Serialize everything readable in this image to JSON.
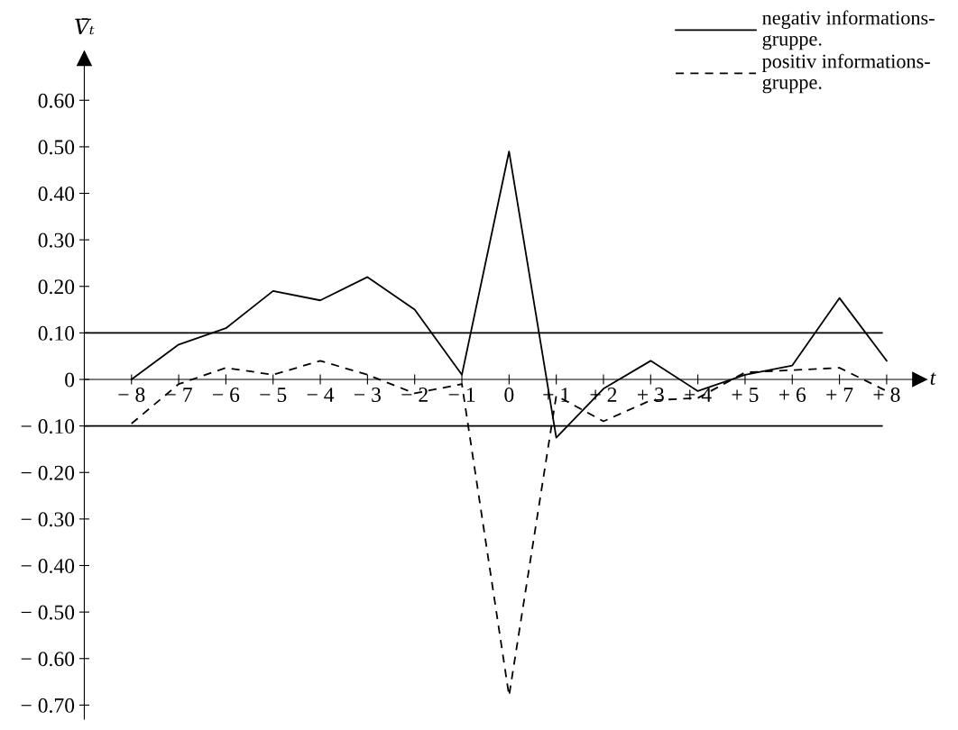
{
  "chart_data": {
    "type": "line",
    "xlabel": "t",
    "ylabel": "V̄ₜ",
    "x": [
      -8,
      -7,
      -6,
      -5,
      -4,
      -3,
      -2,
      -1,
      0,
      1,
      2,
      3,
      4,
      5,
      6,
      7,
      8
    ],
    "series": [
      {
        "name": "negativ informations-\ngruppe.",
        "color": "#000000",
        "line_style": "solid",
        "values": [
          0.0,
          0.075,
          0.11,
          0.19,
          0.17,
          0.22,
          0.15,
          0.01,
          0.49,
          -0.125,
          -0.02,
          0.04,
          -0.025,
          0.01,
          0.03,
          0.175,
          0.04
        ]
      },
      {
        "name": "positiv informations-\ngruppe.",
        "color": "#000000",
        "line_style": "dashed",
        "values": [
          -0.095,
          -0.01,
          0.025,
          0.01,
          0.04,
          0.01,
          -0.03,
          -0.01,
          -0.68,
          -0.035,
          -0.09,
          -0.045,
          -0.04,
          0.015,
          0.02,
          0.025,
          -0.025
        ]
      }
    ],
    "ref_lines": [
      {
        "axis": "y",
        "value": 0.1,
        "color": "#000000",
        "line_style": "solid"
      },
      {
        "axis": "y",
        "value": -0.1,
        "color": "#000000",
        "line_style": "solid"
      }
    ],
    "xlim": [
      -9.0,
      8.7
    ],
    "ylim": [
      -0.73,
      0.69
    ],
    "xticks": [
      {
        "value": -8,
        "label": "− 8"
      },
      {
        "value": -7,
        "label": "− 7"
      },
      {
        "value": -6,
        "label": "− 6"
      },
      {
        "value": -5,
        "label": "− 5"
      },
      {
        "value": -4,
        "label": "− 4"
      },
      {
        "value": -3,
        "label": "− 3"
      },
      {
        "value": -2,
        "label": "− 2"
      },
      {
        "value": -1,
        "label": "− 1"
      },
      {
        "value": 0,
        "label": "0"
      },
      {
        "value": 1,
        "label": "+ 1"
      },
      {
        "value": 2,
        "label": "+ 2"
      },
      {
        "value": 3,
        "label": "+ 3"
      },
      {
        "value": 4,
        "label": "+ 4"
      },
      {
        "value": 5,
        "label": "+ 5"
      },
      {
        "value": 6,
        "label": "+ 6"
      },
      {
        "value": 7,
        "label": "+ 7"
      },
      {
        "value": 8,
        "label": "+ 8"
      }
    ],
    "yticks": [
      {
        "value": 0.6,
        "label": "0.60"
      },
      {
        "value": 0.5,
        "label": "0.50"
      },
      {
        "value": 0.4,
        "label": "0.40"
      },
      {
        "value": 0.3,
        "label": "0.30"
      },
      {
        "value": 0.2,
        "label": "0.20"
      },
      {
        "value": 0.1,
        "label": "0.10"
      },
      {
        "value": 0,
        "label": "0"
      },
      {
        "value": -0.1,
        "label": "− 0.10"
      },
      {
        "value": -0.2,
        "label": "− 0.20"
      },
      {
        "value": -0.3,
        "label": "− 0.30"
      },
      {
        "value": -0.4,
        "label": "− 0.40"
      },
      {
        "value": -0.5,
        "label": "− 0.50"
      },
      {
        "value": -0.6,
        "label": "− 0.60"
      },
      {
        "value": -0.7,
        "label": "− 0.70"
      }
    ],
    "grid": false,
    "legend": "top right",
    "marker": "none"
  }
}
